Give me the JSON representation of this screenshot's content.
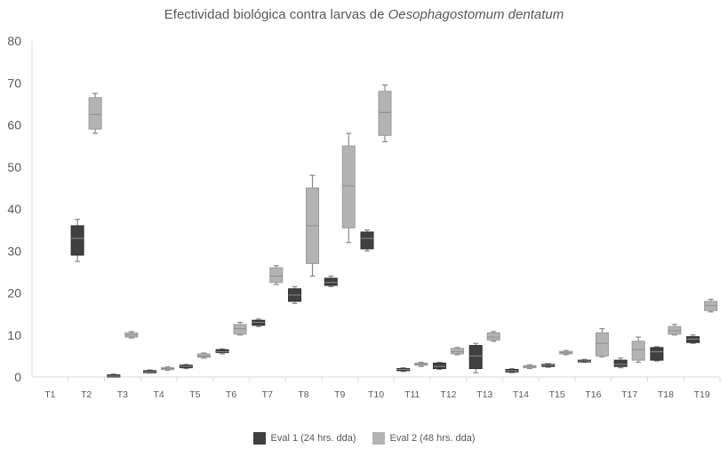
{
  "chart_data": {
    "type": "box",
    "title_prefix": "Efectividad biológica contra larvas de",
    "title_species": "Oesophagostomum dentatum",
    "xlabel": "",
    "ylabel": "",
    "ylim": [
      0,
      80
    ],
    "yticks": [
      0,
      10,
      20,
      30,
      40,
      50,
      60,
      70,
      80
    ],
    "grid": false,
    "legend_position": "bottom",
    "categories": [
      "T1",
      "T2",
      "T3",
      "T4",
      "T5",
      "T6",
      "T7",
      "T8",
      "T9",
      "T10",
      "T11",
      "T12",
      "T13",
      "T14",
      "T15",
      "T16",
      "T17",
      "T18",
      "T19"
    ],
    "series": [
      {
        "name": "Eval 1 (24 hrs. dda)",
        "color": "#404040",
        "boxes": [
          null,
          {
            "min": 27.5,
            "q1": 29,
            "median": 33,
            "q3": 36,
            "max": 37.5
          },
          {
            "min": 0,
            "q1": 0,
            "median": 0.2,
            "q3": 0.5,
            "max": 0.7
          },
          {
            "min": 1,
            "q1": 1,
            "median": 1.2,
            "q3": 1.5,
            "max": 1.7
          },
          {
            "min": 2,
            "q1": 2.2,
            "median": 2.5,
            "q3": 2.8,
            "max": 3
          },
          {
            "min": 5.5,
            "q1": 5.8,
            "median": 6,
            "q3": 6.5,
            "max": 6.7
          },
          {
            "min": 12,
            "q1": 12.3,
            "median": 13,
            "q3": 13.5,
            "max": 13.8
          },
          {
            "min": 17.5,
            "q1": 18,
            "median": 19.5,
            "q3": 21,
            "max": 21.5
          },
          {
            "min": 21.5,
            "q1": 21.8,
            "median": 22.5,
            "q3": 23.5,
            "max": 24
          },
          {
            "min": 30,
            "q1": 30.5,
            "median": 33,
            "q3": 34.5,
            "max": 35
          },
          {
            "min": 1.3,
            "q1": 1.5,
            "median": 1.8,
            "q3": 2,
            "max": 2.2
          },
          {
            "min": 1.8,
            "q1": 2,
            "median": 2.5,
            "q3": 3.3,
            "max": 3.5
          },
          {
            "min": 1,
            "q1": 2,
            "median": 5,
            "q3": 7.5,
            "max": 8
          },
          {
            "min": 1,
            "q1": 1.2,
            "median": 1.5,
            "q3": 1.8,
            "max": 2
          },
          {
            "min": 2.3,
            "q1": 2.5,
            "median": 2.8,
            "q3": 3,
            "max": 3.2
          },
          {
            "min": 3.5,
            "q1": 3.6,
            "median": 3.8,
            "q3": 4,
            "max": 4.2
          },
          {
            "min": 2.2,
            "q1": 2.5,
            "median": 3,
            "q3": 4,
            "max": 4.5
          },
          {
            "min": 3.8,
            "q1": 4,
            "median": 6,
            "q3": 7,
            "max": 7.2
          },
          {
            "min": 8,
            "q1": 8.2,
            "median": 9,
            "q3": 9.6,
            "max": 10
          }
        ]
      },
      {
        "name": "Eval 2 (48 hrs. dda)",
        "color": "#b3b3b3",
        "boxes": [
          null,
          {
            "min": 58,
            "q1": 59,
            "median": 62.5,
            "q3": 66.5,
            "max": 67.5
          },
          {
            "min": 9.3,
            "q1": 9.5,
            "median": 10,
            "q3": 10.5,
            "max": 10.8
          },
          {
            "min": 1.6,
            "q1": 1.8,
            "median": 2,
            "q3": 2.2,
            "max": 2.4
          },
          {
            "min": 4.5,
            "q1": 4.7,
            "median": 5,
            "q3": 5.5,
            "max": 5.7
          },
          {
            "min": 10,
            "q1": 10.2,
            "median": 11.5,
            "q3": 12.5,
            "max": 13
          },
          {
            "min": 22,
            "q1": 22.5,
            "median": 24,
            "q3": 26,
            "max": 26.5
          },
          {
            "min": 24,
            "q1": 27,
            "median": 36,
            "q3": 45,
            "max": 48
          },
          {
            "min": 32,
            "q1": 35.5,
            "median": 45.5,
            "q3": 55,
            "max": 58
          },
          {
            "min": 56,
            "q1": 57.5,
            "median": 63,
            "q3": 68,
            "max": 69.5
          },
          {
            "min": 2.5,
            "q1": 2.8,
            "median": 3,
            "q3": 3.3,
            "max": 3.5
          },
          {
            "min": 5.3,
            "q1": 5.5,
            "median": 6,
            "q3": 6.8,
            "max": 7
          },
          {
            "min": 8.5,
            "q1": 8.8,
            "median": 9.5,
            "q3": 10.5,
            "max": 10.8
          },
          {
            "min": 2,
            "q1": 2.2,
            "median": 2.5,
            "q3": 2.7,
            "max": 2.9
          },
          {
            "min": 5.3,
            "q1": 5.5,
            "median": 5.8,
            "q3": 6.1,
            "max": 6.3
          },
          {
            "min": 4.8,
            "q1": 5,
            "median": 8,
            "q3": 10.5,
            "max": 11.5
          },
          {
            "min": 3.5,
            "q1": 4,
            "median": 6.5,
            "q3": 8.5,
            "max": 9.5
          },
          {
            "min": 10,
            "q1": 10.2,
            "median": 11,
            "q3": 12,
            "max": 12.5
          },
          {
            "min": 15.5,
            "q1": 15.8,
            "median": 17,
            "q3": 18,
            "max": 18.5
          }
        ]
      }
    ]
  }
}
